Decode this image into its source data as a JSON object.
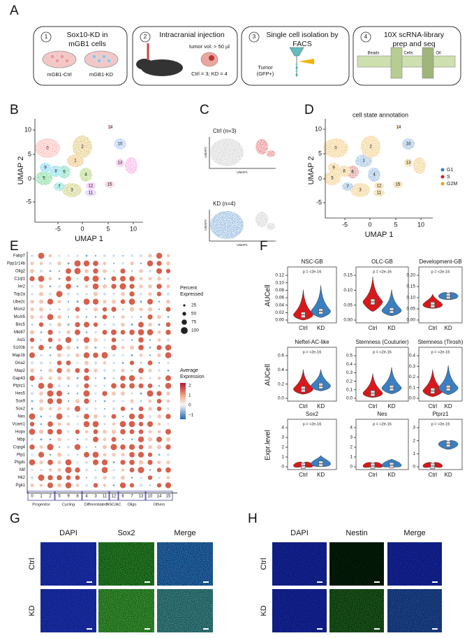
{
  "figure": {
    "A": {
      "label": "A",
      "steps": [
        {
          "number": "1",
          "title": [
            "Sox10-KD in",
            "mGB1 cells"
          ],
          "labels": [
            "mGB1-Ctrl",
            "mGB1-KD"
          ]
        },
        {
          "number": "2",
          "title": [
            "Intracranial injection"
          ],
          "labels": [
            "tumor vol. > 50 µl",
            "Ctrl = 3; KD = 4"
          ]
        },
        {
          "number": "3",
          "title": [
            "Single cell isolation by",
            "FACS"
          ],
          "labels": [
            "Tumor",
            "(GFP+)"
          ]
        },
        {
          "number": "4",
          "title": [
            "10X scRNA-library",
            "prep and seq"
          ],
          "labels": [
            "Beads",
            "Cells",
            "Oil"
          ]
        }
      ]
    },
    "B": {
      "label": "B",
      "xlabel": "UMAP 1",
      "ylabel": "UMAP 2",
      "xticks": [
        "-5",
        "0",
        "5",
        "10"
      ],
      "yticks": [
        "10",
        "5",
        "0",
        "-5"
      ],
      "clusters": [
        "0",
        "1",
        "2",
        "3",
        "4",
        "5",
        "6",
        "7",
        "8",
        "9",
        "10",
        "11",
        "12",
        "13",
        "14",
        "15"
      ]
    },
    "C": {
      "label": "C",
      "xlabel": "UMAP1",
      "ylabel": "UMAP2",
      "panels": [
        "Ctrl (n=3)",
        "KD (n=4)"
      ]
    },
    "D": {
      "label": "D",
      "title": "cell state annotation",
      "xlabel": "UMAP 1",
      "ylabel": "UMAP 2",
      "xticks": [
        "-5",
        "0",
        "5",
        "10"
      ],
      "yticks": [
        "10",
        "5",
        "0",
        "-5"
      ],
      "clusters": [
        "0",
        "1",
        "2",
        "3",
        "4",
        "5",
        "6",
        "7",
        "8",
        "9",
        "10",
        "11",
        "12",
        "13",
        "14",
        "15"
      ],
      "legend": [
        {
          "name": "G1",
          "color": "#3b7fc4"
        },
        {
          "name": "S",
          "color": "#c0272d"
        },
        {
          "name": "G2M",
          "color": "#e8a31c"
        }
      ]
    },
    "E": {
      "label": "E",
      "genes": [
        "Fabp7",
        "Ppp1r14b",
        "Olig2",
        "C1ql1",
        "Ier2",
        "Top2a",
        "Ube2c",
        "Mcm2",
        "Mcm5",
        "Birc5",
        "Mki67",
        "Axl1",
        "S100b",
        "Map1b",
        "Gria2",
        "Map2",
        "Gap43",
        "Ptprz1",
        "Hes5",
        "Sox9",
        "Sox2",
        "Nes",
        "Vcam1",
        "Hopx",
        "Mbp",
        "Cspg4",
        "Plp1",
        "Ptgds",
        "Mif",
        "Hk2",
        "Pgk1"
      ],
      "columns": [
        "0",
        "1",
        "2",
        "5",
        "9",
        "8",
        "4",
        "3",
        "11",
        "12",
        "6",
        "7",
        "13",
        "10",
        "14",
        "15"
      ],
      "groups": [
        "Progenitor",
        "Cycling",
        "Differentiated",
        "NSC/AC",
        "Oligo",
        "Others"
      ],
      "size_legend": {
        "title": [
          "Percent",
          "Expressed"
        ],
        "ticks": [
          "25",
          "50",
          "75",
          "100"
        ]
      },
      "color_legend": {
        "title": [
          "Average",
          "Expression"
        ],
        "ticks": [
          "2",
          "1",
          "0",
          "−1"
        ]
      }
    },
    "F": {
      "label": "F",
      "groups": [
        "Ctrl",
        "KD"
      ],
      "rows": [
        {
          "ylabel": "AUCell",
          "panels": [
            {
              "title": "NSC-GB",
              "p": "p = <2e-16",
              "yticks": [
                "0.12",
                "0.10",
                "0.08",
                "0.06",
                "0.04",
                "0.02",
                "0.00"
              ]
            },
            {
              "title": "OLC-GB",
              "p": "p = <2e-16",
              "yticks": [
                "0.15",
                "0.10",
                "0.05",
                "0.00"
              ]
            },
            {
              "title": "Development-GB",
              "p": "p = <2e-16",
              "yticks": [
                "0.20",
                "0.15",
                "0.10",
                "0.05",
                "0.00"
              ]
            }
          ]
        },
        {
          "ylabel": "AUCell",
          "panels": [
            {
              "title": "Neftel-AC-like",
              "p": "p = <2e-16",
              "yticks": [
                "0.6",
                "0.4",
                "0.2",
                "0.0"
              ]
            },
            {
              "title": "Stemness (Couturier)",
              "p": "p = <2e-16",
              "yticks": [
                "0.5",
                "0.4",
                "0.3",
                "0.2",
                "0.1",
                "0.0"
              ]
            },
            {
              "title": "Stemness (Tirosh)",
              "p": "p = <2e-16",
              "yticks": [
                "0.4",
                "0.3",
                "0.2",
                "0.1",
                "0.0"
              ]
            }
          ]
        },
        {
          "ylabel": "Expr.level",
          "panels": [
            {
              "title": "Sox2",
              "p": "p = <2e-16",
              "yticks": [
                "4",
                "3",
                "2",
                "1",
                "0"
              ]
            },
            {
              "title": "Nes",
              "p": "p = <2e-16",
              "yticks": [
                "4",
                "3",
                "2",
                "1",
                "0"
              ]
            },
            {
              "title": "Ptprz1",
              "p": "p = <2e-16",
              "yticks": [
                "3",
                "2",
                "1",
                "0"
              ]
            }
          ]
        }
      ]
    },
    "G": {
      "label": "G",
      "columns": [
        "DAPI",
        "Sox2",
        "Merge"
      ],
      "rows": [
        "Ctrl",
        "KD"
      ]
    },
    "H": {
      "label": "H",
      "columns": [
        "DAPI",
        "Nestin",
        "Merge"
      ],
      "rows": [
        "Ctrl",
        "KD"
      ]
    }
  }
}
